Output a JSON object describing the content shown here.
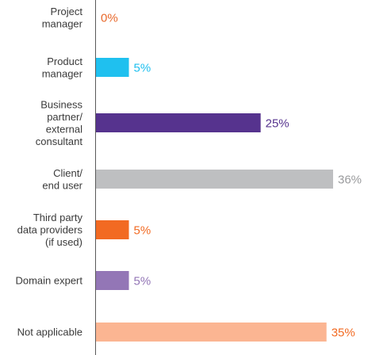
{
  "chart_data": {
    "type": "bar",
    "orientation": "horizontal",
    "categories": [
      [
        "Project",
        "manager"
      ],
      [
        "Product",
        "manager"
      ],
      [
        "Business",
        "partner/",
        "external",
        "consultant"
      ],
      [
        "Client/",
        "end user"
      ],
      [
        "Third party",
        "data providers",
        "(if used)"
      ],
      [
        "Domain expert"
      ],
      [
        "Not applicable"
      ]
    ],
    "values": [
      0,
      5,
      25,
      36,
      5,
      5,
      35
    ],
    "value_labels": [
      "0%",
      "5%",
      "25%",
      "36%",
      "5%",
      "5%",
      "35%"
    ],
    "colors": [
      "#e8692c",
      "#1fc0ef",
      "#56338e",
      "#bebfc1",
      "#f26a22",
      "#9376b6",
      "#fbb592"
    ],
    "label_colors": [
      "#e8692c",
      "#1fc0ef",
      "#56338e",
      "#9a9b9d",
      "#f26a22",
      "#9376b6",
      "#f26a22"
    ],
    "xlim": [
      0,
      36
    ],
    "title": "",
    "xlabel": "",
    "ylabel": "",
    "grid": false,
    "legend": "none"
  }
}
